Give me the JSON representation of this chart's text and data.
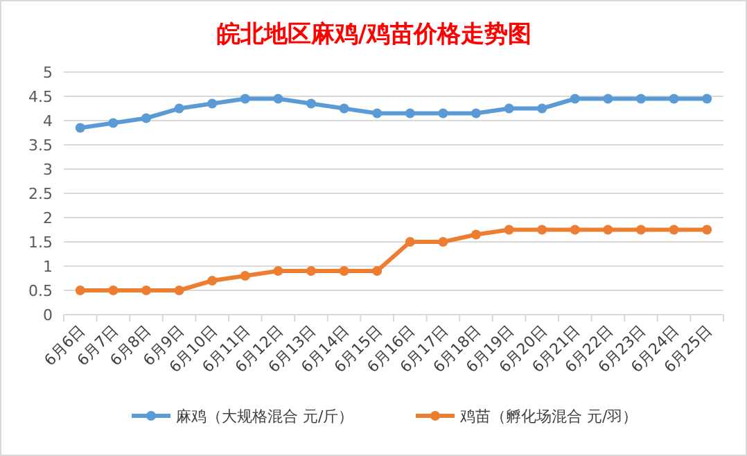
{
  "chart_data": {
    "type": "line",
    "title": "皖北地区麻鸡/鸡苗价格走势图",
    "categories": [
      "6月6日",
      "6月7日",
      "6月8日",
      "6月9日",
      "6月10日",
      "6月11日",
      "6月12日",
      "6月13日",
      "6月14日",
      "6月15日",
      "6月16日",
      "6月17日",
      "6月18日",
      "6月19日",
      "6月20日",
      "6月21日",
      "6月22日",
      "6月23日",
      "6月24日",
      "6月25日"
    ],
    "series": [
      {
        "name": "麻鸡（大规格混合 元/斤）",
        "color": "#5b9bd5",
        "values": [
          3.85,
          3.95,
          4.05,
          4.25,
          4.35,
          4.45,
          4.45,
          4.35,
          4.25,
          4.15,
          4.15,
          4.15,
          4.15,
          4.25,
          4.25,
          4.45,
          4.45,
          4.45,
          4.45,
          4.45
        ]
      },
      {
        "name": "鸡苗（孵化场混合 元/羽）",
        "color": "#ed7d31",
        "values": [
          0.5,
          0.5,
          0.5,
          0.5,
          0.7,
          0.8,
          0.9,
          0.9,
          0.9,
          0.9,
          1.5,
          1.5,
          1.65,
          1.75,
          1.75,
          1.75,
          1.75,
          1.75,
          1.75,
          1.75
        ]
      }
    ],
    "ylim": [
      0,
      5
    ],
    "yticks": [
      0,
      0.5,
      1,
      1.5,
      2,
      2.5,
      3,
      3.5,
      4,
      4.5,
      5
    ],
    "grid": "y",
    "legend": "bottom",
    "marker": "circle",
    "line_style": "solid"
  }
}
